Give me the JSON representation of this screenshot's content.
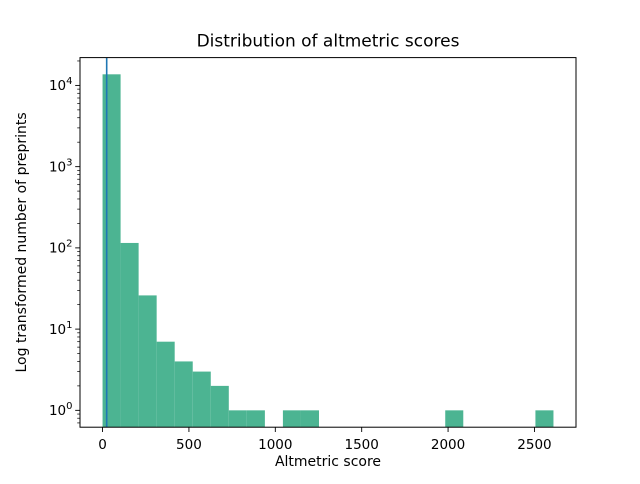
{
  "chart_data": {
    "type": "bar",
    "subtype": "histogram",
    "title": "Distribution of altmetric scores",
    "xlabel": "Altmetric score",
    "ylabel": "Log transformed number of preprints",
    "yscale": "log",
    "grid": false,
    "legend_position": "none",
    "bin_edges": [
      0,
      104.4,
      208.8,
      313.2,
      417.6,
      522,
      626.4,
      730.8,
      835.2,
      939.6,
      1044,
      1148.4,
      1252.8,
      1357.2,
      1461.6,
      1566,
      1670.4,
      1774.8,
      1879.2,
      1983.6,
      2088,
      2192.4,
      2296.8,
      2401.2,
      2505.6,
      2610
    ],
    "counts": [
      13700,
      115,
      26,
      7,
      4,
      3,
      2,
      1,
      1,
      0,
      1,
      1,
      0,
      0,
      0,
      0,
      0,
      0,
      0,
      1,
      0,
      0,
      0,
      0,
      1
    ],
    "vline": {
      "x": 24,
      "color": "#1f77b4"
    },
    "xticks": [
      0,
      500,
      1000,
      1500,
      2000,
      2500
    ],
    "yticks": [
      1,
      10,
      100,
      1000,
      10000
    ],
    "ytick_base": "10",
    "ytick_exponents": [
      0,
      1,
      2,
      3,
      4
    ],
    "xlim": [
      -130.5,
      2740.5
    ],
    "ylim": [
      0.62,
      22000
    ],
    "colors": {
      "bar": "#4cb492",
      "vline": "#1f77b4",
      "spine": "#000000",
      "text": "#000000"
    }
  }
}
